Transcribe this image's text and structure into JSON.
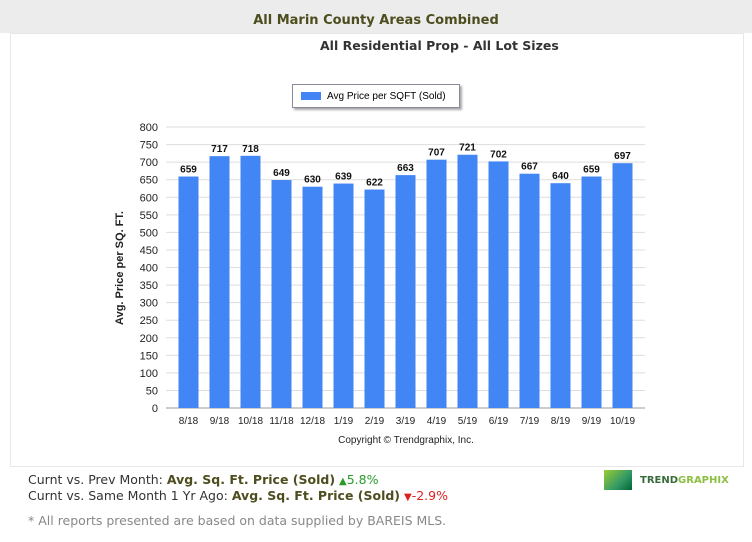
{
  "header": {
    "title": "All Marin County Areas Combined"
  },
  "chart_data": {
    "type": "bar",
    "title": "All Residential Prop - All Lot Sizes",
    "ylabel": "Avg. Price per SQ. FT.",
    "xlabel": "",
    "ylim": [
      0,
      800
    ],
    "yticks": [
      0,
      50,
      100,
      150,
      200,
      250,
      300,
      350,
      400,
      450,
      500,
      550,
      600,
      650,
      700,
      750,
      800
    ],
    "grid": true,
    "legend": "top-center",
    "categories": [
      "8/18",
      "9/18",
      "10/18",
      "11/18",
      "12/18",
      "1/19",
      "2/19",
      "3/19",
      "4/19",
      "5/19",
      "6/19",
      "7/19",
      "8/19",
      "9/19",
      "10/19"
    ],
    "series": [
      {
        "name": "Avg Price per SQFT (Sold)",
        "color": "#4285f4",
        "values": [
          659,
          717,
          718,
          649,
          630,
          639,
          622,
          663,
          707,
          721,
          702,
          667,
          640,
          659,
          697
        ]
      }
    ],
    "credit": "Copyright © Trendgraphix, Inc."
  },
  "stats": {
    "row1_label": "Curnt vs. Prev Month:",
    "row1_metric": "Avg. Sq. Ft. Price (Sold)",
    "row1_arrow": "▲",
    "row1_value": "5.8%",
    "row2_label": "Curnt vs. Same Month 1 Yr Ago:",
    "row2_metric": "Avg. Sq. Ft. Price (Sold)",
    "row2_arrow": "▼",
    "row2_value": "-2.9%"
  },
  "logo": {
    "part1": "TREND",
    "part2": "GRAPHIX"
  },
  "footnote": "* All reports presented are based on data supplied by BAREIS MLS."
}
